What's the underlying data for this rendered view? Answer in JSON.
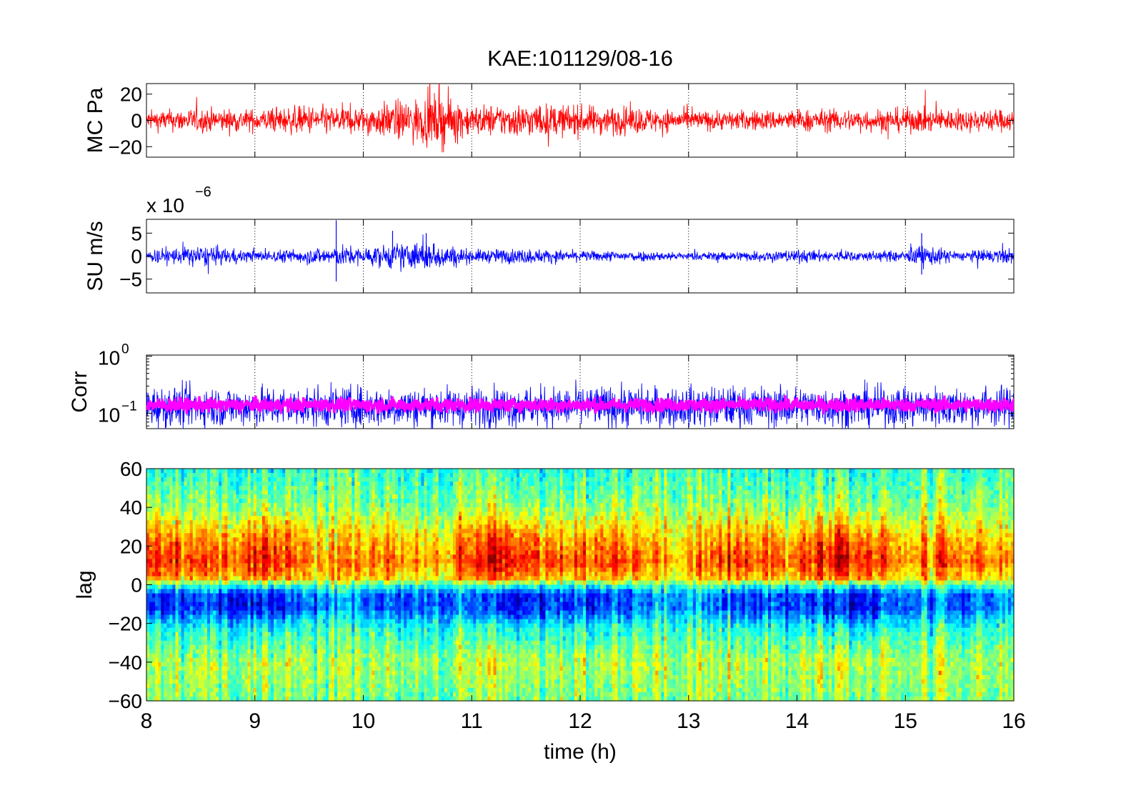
{
  "figure": {
    "title": "KAE:101129/08-16",
    "xlabel": "time (h)"
  },
  "chart_data": [
    {
      "type": "line",
      "ylabel": "MC Pa",
      "xlim": [
        8,
        16
      ],
      "ylim": [
        -28,
        28
      ],
      "yticks": [
        -20,
        0,
        20
      ],
      "ytick_labels": [
        "−20",
        "0",
        "20"
      ],
      "xticks": [
        8,
        9,
        10,
        11,
        12,
        13,
        14,
        15,
        16
      ],
      "grid": "vertical dotted",
      "series": [
        {
          "color": "#ff0000",
          "x": [
            8,
            8.5,
            9,
            9.5,
            10,
            10.3,
            10.5,
            10.75,
            11,
            11.5,
            12,
            12.5,
            13,
            13.5,
            14,
            14.5,
            15,
            15.5,
            16
          ],
          "envelope": [
            8,
            10,
            9,
            12,
            11,
            16,
            18,
            22,
            12,
            14,
            12,
            11,
            8,
            8,
            9,
            9,
            10,
            9,
            9
          ]
        }
      ]
    },
    {
      "type": "line",
      "ylabel": "SU m/s",
      "multiplier": "x 10",
      "multiplier_exponent": "−6",
      "xlim": [
        8,
        16
      ],
      "ylim": [
        -8,
        8
      ],
      "yticks": [
        -5,
        0,
        5
      ],
      "ytick_labels": [
        "−5",
        "0",
        "5"
      ],
      "xticks": [
        8,
        9,
        10,
        11,
        12,
        13,
        14,
        15,
        16
      ],
      "grid": "vertical dotted",
      "series": [
        {
          "color": "#0000ff",
          "x": [
            8,
            8.5,
            9,
            9.5,
            9.8,
            10,
            10.3,
            10.6,
            11,
            11.5,
            12,
            12.5,
            13,
            13.5,
            14,
            14.5,
            15,
            15.15,
            15.5,
            16
          ],
          "envelope": [
            1.5,
            2.5,
            1.2,
            1.8,
            2.5,
            2.0,
            3.0,
            3.5,
            1.5,
            1.8,
            1.2,
            1.3,
            0.9,
            1.2,
            1.5,
            1.2,
            1.3,
            2.5,
            1.2,
            1.8
          ]
        }
      ],
      "spikes": [
        {
          "x": 9.75,
          "min": -5.5,
          "max": 7.8
        },
        {
          "x": 10.27,
          "min": -1.5,
          "max": 5.5
        },
        {
          "x": 10.58,
          "min": -2.0,
          "max": 5.0
        },
        {
          "x": 15.15,
          "min": -4.0,
          "max": 5.0
        }
      ]
    },
    {
      "type": "line",
      "ylabel": "Corr",
      "yscale": "log",
      "xlim": [
        8,
        16
      ],
      "yticks": [
        0.1,
        1
      ],
      "ytick_labels": [
        {
          "base": "10",
          "exponent": "−1"
        },
        {
          "base": "10",
          "exponent": "0"
        }
      ],
      "xticks": [
        8,
        9,
        10,
        11,
        12,
        13,
        14,
        15,
        16
      ],
      "grid": "vertical dotted",
      "series": [
        {
          "color": "#0000ff",
          "center": 0.13,
          "spread_decades": 0.35
        },
        {
          "color": "#ff00ff",
          "center": 0.14,
          "spread_decades": 0.12
        }
      ]
    },
    {
      "type": "heatmap",
      "ylabel": "lag",
      "colormap": "jet",
      "xlim": [
        8,
        16
      ],
      "ylim": [
        -60,
        60
      ],
      "yticks": [
        -60,
        -40,
        -20,
        0,
        20,
        40,
        60
      ],
      "ytick_labels": [
        "−60",
        "−40",
        "−20",
        "0",
        "20",
        "40",
        "60"
      ],
      "xticks": [
        8,
        9,
        10,
        11,
        12,
        13,
        14,
        15,
        16
      ],
      "xtick_labels": [
        "8",
        "9",
        "10",
        "11",
        "12",
        "13",
        "14",
        "15",
        "16"
      ],
      "bands": [
        {
          "lag": 60,
          "level": 0.42
        },
        {
          "lag": 40,
          "level": 0.52
        },
        {
          "lag": 25,
          "level": 0.7
        },
        {
          "lag": 12,
          "level": 0.8
        },
        {
          "lag": 3,
          "level": 0.68
        },
        {
          "lag": 0,
          "level": 0.45
        },
        {
          "lag": -5,
          "level": 0.22
        },
        {
          "lag": -12,
          "level": 0.2
        },
        {
          "lag": -22,
          "level": 0.4
        },
        {
          "lag": -40,
          "level": 0.55
        },
        {
          "lag": -60,
          "level": 0.5
        }
      ]
    }
  ]
}
